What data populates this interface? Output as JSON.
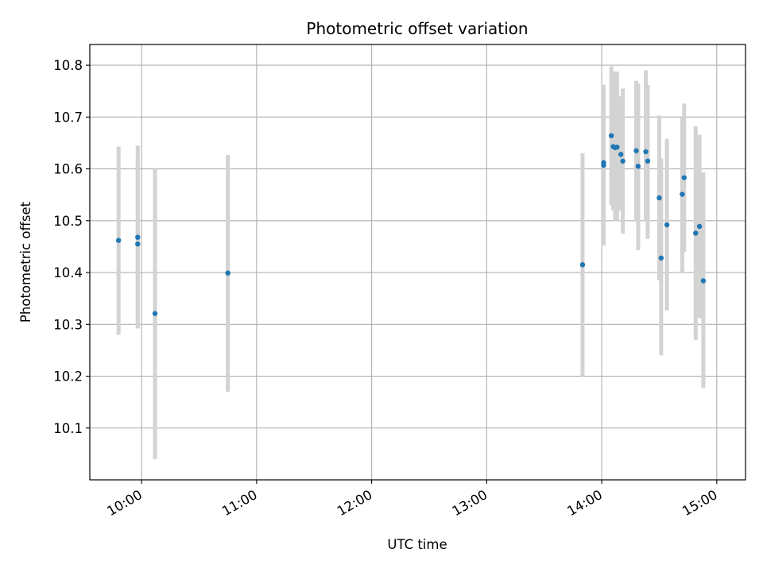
{
  "chart_data": {
    "type": "scatter",
    "title": "Photometric offset variation",
    "xlabel": "UTC time",
    "ylabel": "Photometric offset",
    "x_axis_kind": "time",
    "xlim": [
      "09:33",
      "15:15"
    ],
    "ylim": [
      10.0,
      10.84
    ],
    "x_ticks": [
      "10:00",
      "11:00",
      "12:00",
      "13:00",
      "14:00",
      "15:00"
    ],
    "y_ticks": [
      10.1,
      10.2,
      10.3,
      10.4,
      10.5,
      10.6,
      10.7,
      10.8
    ],
    "y_tick_labels": [
      "10.1",
      "10.2",
      "10.3",
      "10.4",
      "10.5",
      "10.6",
      "10.7",
      "10.8"
    ],
    "grid": true,
    "marker_color": "#1f77b4",
    "errorbar_color": "#d3d3d3",
    "points": [
      {
        "x": "09:48",
        "y": 10.462,
        "ylo": 10.28,
        "yhi": 10.643
      },
      {
        "x": "09:58",
        "y": 10.455,
        "ylo": 10.292,
        "yhi": 10.618
      },
      {
        "x": "09:58",
        "y": 10.468,
        "ylo": 10.292,
        "yhi": 10.645
      },
      {
        "x": "10:07",
        "y": 10.321,
        "ylo": 10.04,
        "yhi": 10.6
      },
      {
        "x": "10:45",
        "y": 10.399,
        "ylo": 10.17,
        "yhi": 10.627
      },
      {
        "x": "13:50",
        "y": 10.415,
        "ylo": 10.2,
        "yhi": 10.63
      },
      {
        "x": "14:01",
        "y": 10.607,
        "ylo": 10.452,
        "yhi": 10.762
      },
      {
        "x": "14:01",
        "y": 10.612,
        "ylo": 10.462,
        "yhi": 10.762
      },
      {
        "x": "14:05",
        "y": 10.664,
        "ylo": 10.53,
        "yhi": 10.798
      },
      {
        "x": "14:06",
        "y": 10.643,
        "ylo": 10.52,
        "yhi": 10.788
      },
      {
        "x": "14:07",
        "y": 10.641,
        "ylo": 10.5,
        "yhi": 10.77
      },
      {
        "x": "14:08",
        "y": 10.642,
        "ylo": 10.5,
        "yhi": 10.788
      },
      {
        "x": "14:10",
        "y": 10.628,
        "ylo": 10.52,
        "yhi": 10.74
      },
      {
        "x": "14:11",
        "y": 10.615,
        "ylo": 10.475,
        "yhi": 10.755
      },
      {
        "x": "14:18",
        "y": 10.635,
        "ylo": 10.5,
        "yhi": 10.77
      },
      {
        "x": "14:19",
        "y": 10.605,
        "ylo": 10.443,
        "yhi": 10.765
      },
      {
        "x": "14:23",
        "y": 10.633,
        "ylo": 10.5,
        "yhi": 10.79
      },
      {
        "x": "14:24",
        "y": 10.615,
        "ylo": 10.465,
        "yhi": 10.762
      },
      {
        "x": "14:30",
        "y": 10.544,
        "ylo": 10.385,
        "yhi": 10.703
      },
      {
        "x": "14:31",
        "y": 10.428,
        "ylo": 10.24,
        "yhi": 10.62
      },
      {
        "x": "14:34",
        "y": 10.492,
        "ylo": 10.327,
        "yhi": 10.658
      },
      {
        "x": "14:42",
        "y": 10.551,
        "ylo": 10.4,
        "yhi": 10.7
      },
      {
        "x": "14:43",
        "y": 10.583,
        "ylo": 10.44,
        "yhi": 10.726
      },
      {
        "x": "14:49",
        "y": 10.476,
        "ylo": 10.27,
        "yhi": 10.682
      },
      {
        "x": "14:51",
        "y": 10.489,
        "ylo": 10.312,
        "yhi": 10.666
      },
      {
        "x": "14:53",
        "y": 10.384,
        "ylo": 10.177,
        "yhi": 10.593
      }
    ]
  }
}
